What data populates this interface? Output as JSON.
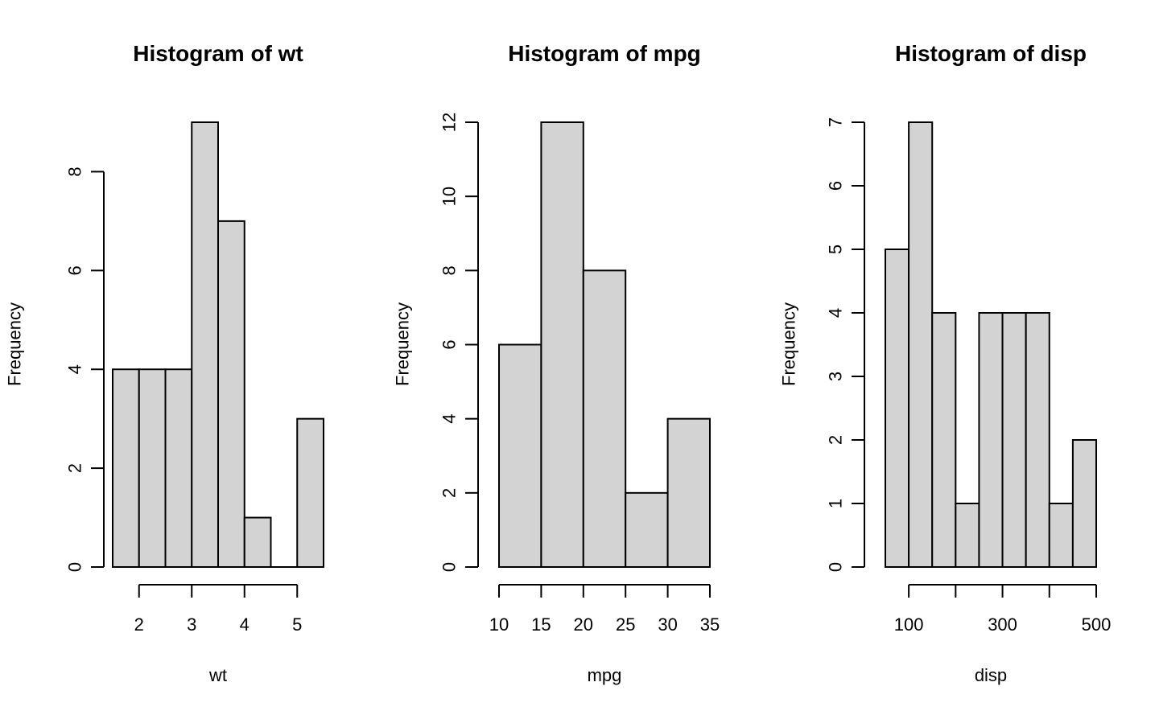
{
  "chart_data": [
    {
      "type": "bar",
      "title": "Histogram of wt",
      "xlabel": "wt",
      "ylabel": "Frequency",
      "bins": [
        [
          1.5,
          2.0
        ],
        [
          2.0,
          2.5
        ],
        [
          2.5,
          3.0
        ],
        [
          3.0,
          3.5
        ],
        [
          3.5,
          4.0
        ],
        [
          4.0,
          4.5
        ],
        [
          4.5,
          5.0
        ],
        [
          5.0,
          5.5
        ]
      ],
      "values": [
        4,
        4,
        4,
        9,
        7,
        1,
        0,
        3
      ],
      "xticks": [
        2,
        3,
        4,
        5
      ],
      "xtick_labels": [
        "2",
        "3",
        "4",
        "5"
      ],
      "yticks": [
        0,
        2,
        4,
        6,
        8
      ],
      "ytick_labels": [
        "0",
        "2",
        "4",
        "6",
        "8"
      ],
      "xlim": [
        1.5,
        5.5
      ],
      "ylim": [
        0,
        9
      ],
      "grid": false,
      "legend": "none"
    },
    {
      "type": "bar",
      "title": "Histogram of mpg",
      "xlabel": "mpg",
      "ylabel": "Frequency",
      "bins": [
        [
          10,
          15
        ],
        [
          15,
          20
        ],
        [
          20,
          25
        ],
        [
          25,
          30
        ],
        [
          30,
          35
        ]
      ],
      "values": [
        6,
        12,
        8,
        2,
        4
      ],
      "xticks": [
        10,
        15,
        20,
        25,
        30,
        35
      ],
      "xtick_labels": [
        "10",
        "15",
        "20",
        "25",
        "30",
        "35"
      ],
      "yticks": [
        0,
        2,
        4,
        6,
        8,
        10,
        12
      ],
      "ytick_labels": [
        "0",
        "2",
        "4",
        "6",
        "8",
        "10",
        "12"
      ],
      "xlim": [
        10,
        35
      ],
      "ylim": [
        0,
        12
      ],
      "grid": false,
      "legend": "none"
    },
    {
      "type": "bar",
      "title": "Histogram of disp",
      "xlabel": "disp",
      "ylabel": "Frequency",
      "bins": [
        [
          50,
          100
        ],
        [
          100,
          150
        ],
        [
          150,
          200
        ],
        [
          200,
          250
        ],
        [
          250,
          300
        ],
        [
          300,
          350
        ],
        [
          350,
          400
        ],
        [
          400,
          450
        ],
        [
          450,
          500
        ]
      ],
      "values": [
        5,
        7,
        4,
        1,
        4,
        4,
        4,
        1,
        2
      ],
      "xticks": [
        100,
        200,
        300,
        400,
        500
      ],
      "xtick_labels": [
        "100",
        "",
        "300",
        "",
        "500"
      ],
      "yticks": [
        0,
        1,
        2,
        3,
        4,
        5,
        6,
        7
      ],
      "ytick_labels": [
        "0",
        "1",
        "2",
        "3",
        "4",
        "5",
        "6",
        "7"
      ],
      "xlim": [
        50,
        500
      ],
      "ylim": [
        0,
        7
      ],
      "grid": false,
      "legend": "none"
    }
  ]
}
